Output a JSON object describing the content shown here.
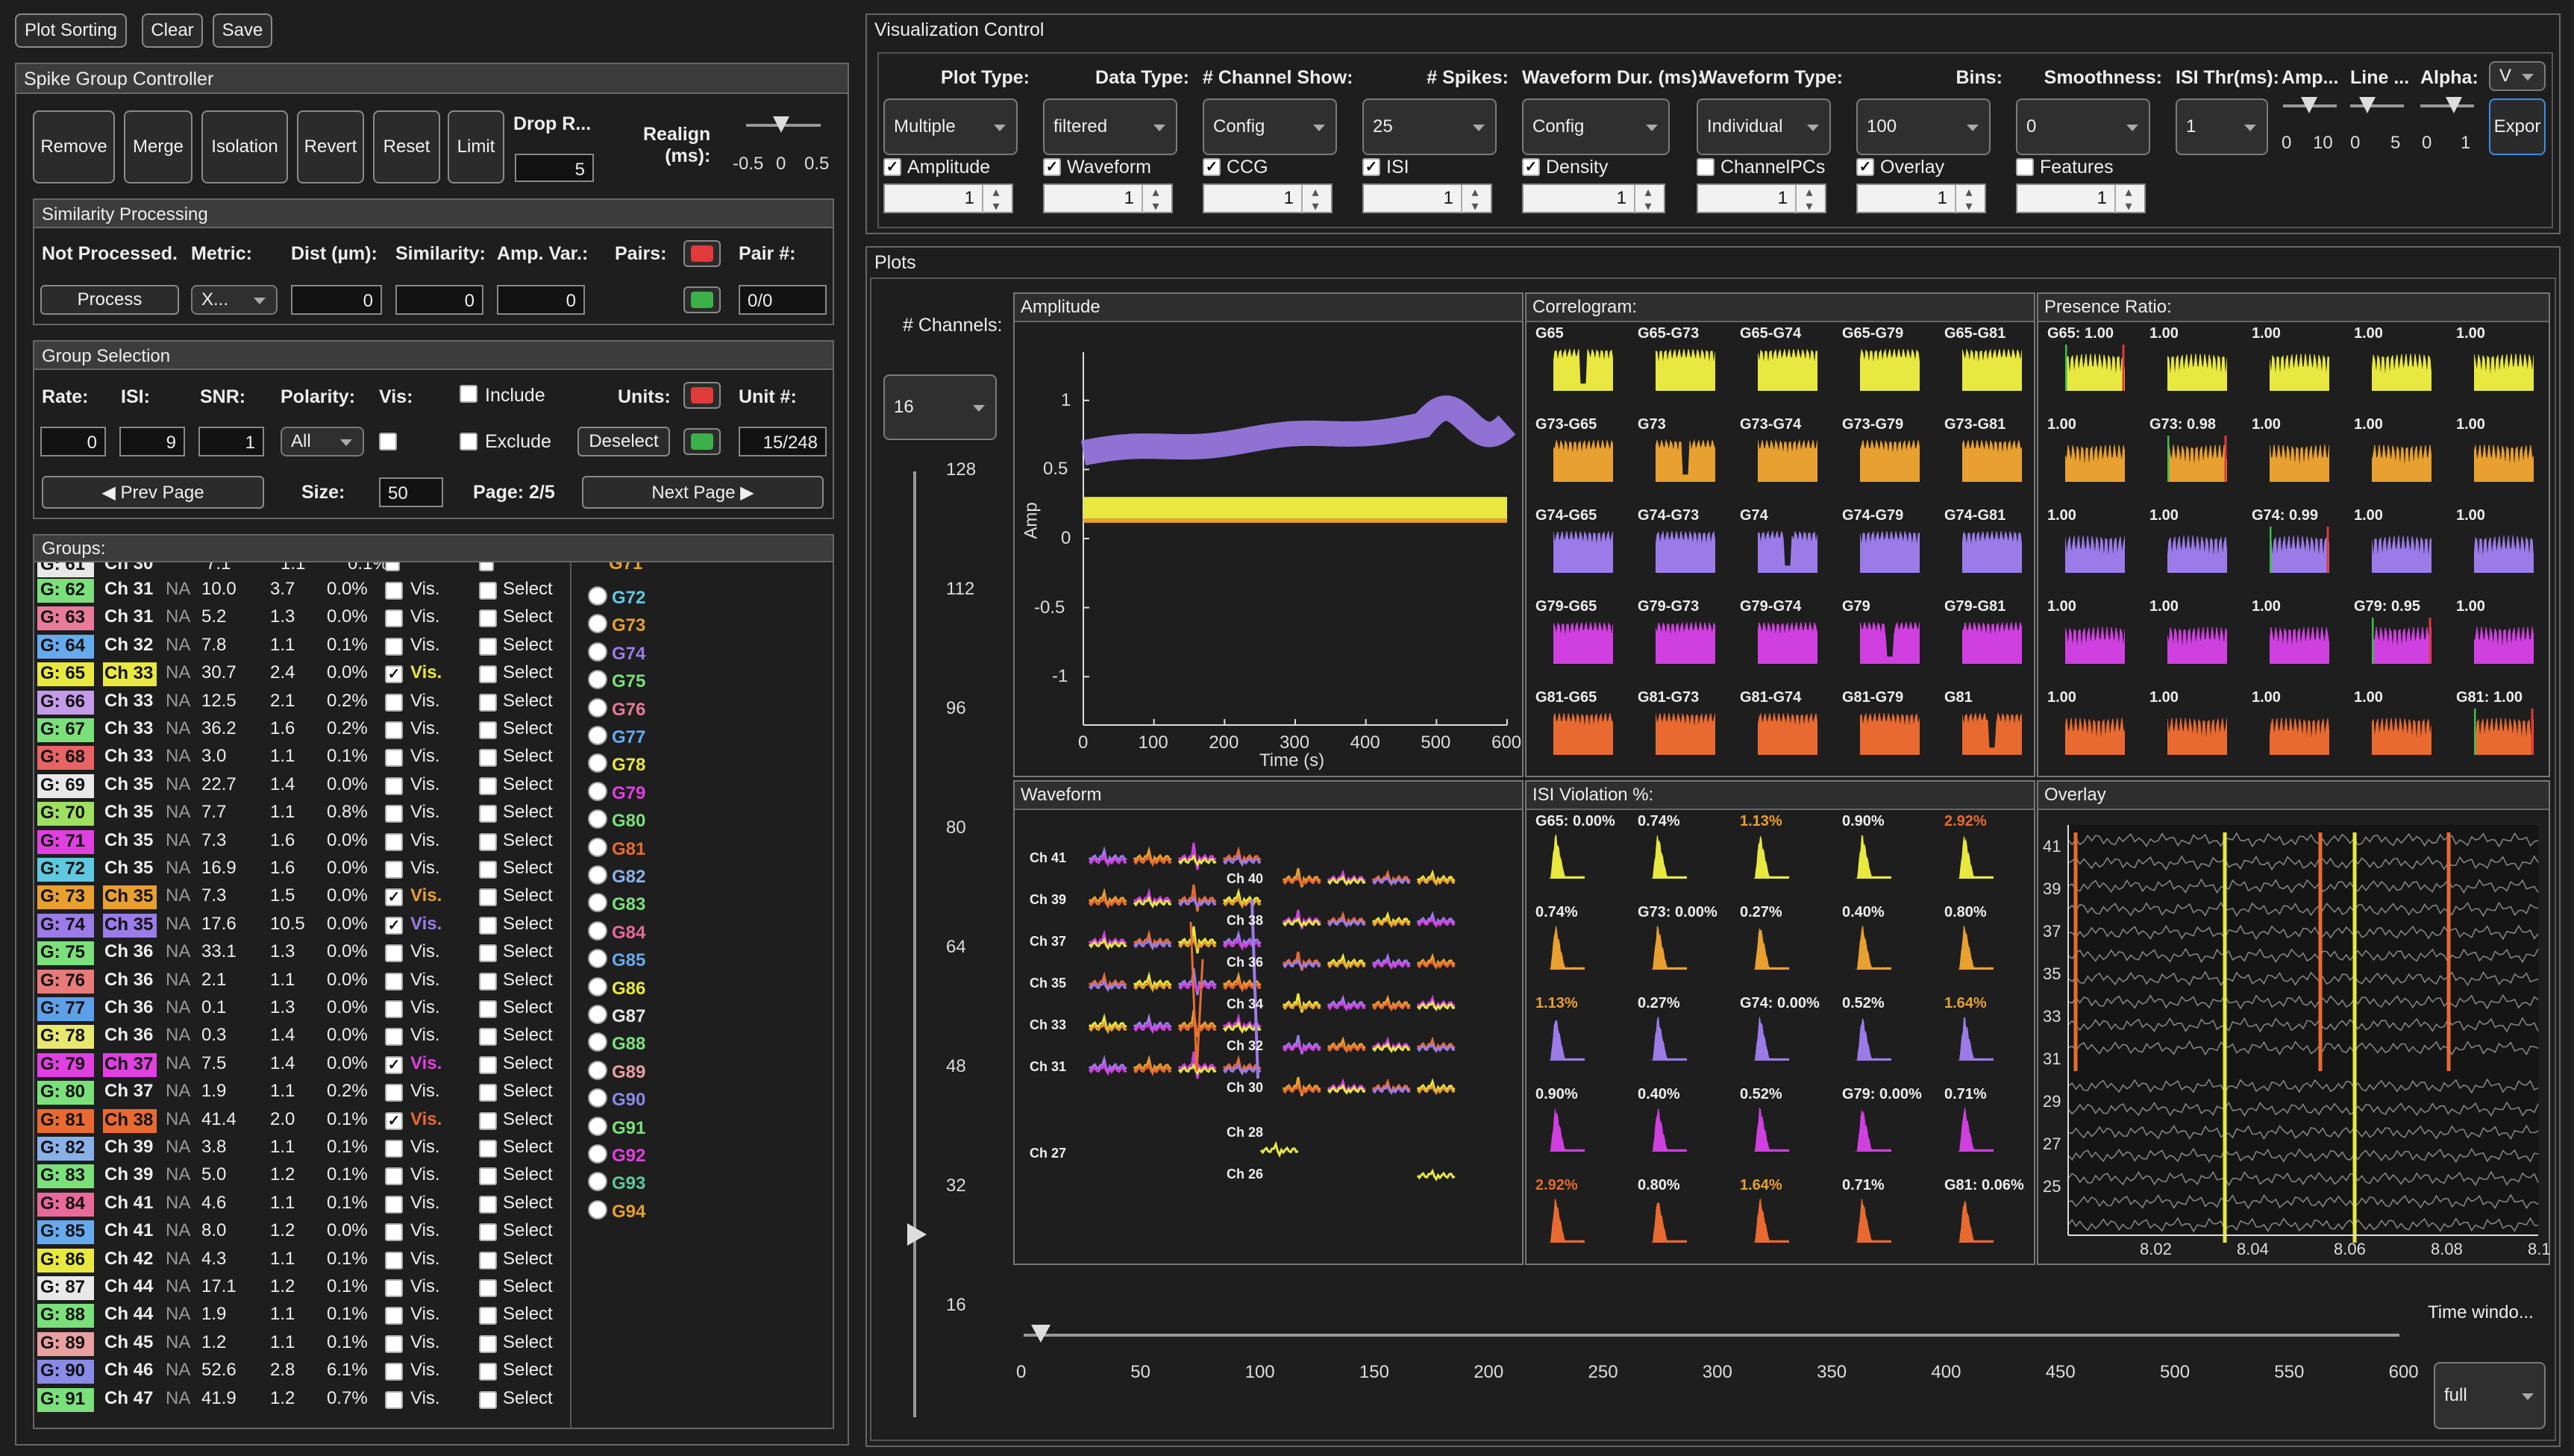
{
  "toolbar": {
    "plot_sorting": "Plot Sorting",
    "clear": "Clear",
    "save": "Save"
  },
  "sgc": {
    "title": "Spike Group Controller",
    "remove": "Remove",
    "merge": "Merge",
    "isolation": "Isolation",
    "revert": "Revert",
    "reset": "Reset",
    "limit": "Limit",
    "drop_label": "Drop R...",
    "drop_value": "5",
    "realign_label": "Realign\n(ms):",
    "realign_ticks": [
      "-0.5",
      "0",
      "0.5"
    ]
  },
  "sim": {
    "title": "Similarity Processing",
    "status": "Not Processed.",
    "metric_label": "Metric:",
    "dist_label": "Dist (µm):",
    "similarity_label": "Similarity:",
    "ampvar_label": "Amp. Var.:",
    "pairs_label": "Pairs:",
    "pairnum_label": "Pair #:",
    "process": "Process",
    "metric_value": "X...",
    "dist_value": "0",
    "similarity_value": "0",
    "ampvar_value": "0",
    "pairnum_value": "0/0"
  },
  "gsel": {
    "title": "Group Selection",
    "rate_label": "Rate:",
    "isi_label": "ISI:",
    "snr_label": "SNR:",
    "polarity_label": "Polarity:",
    "vis_label": "Vis:",
    "include": "Include",
    "exclude": "Exclude",
    "units_label": "Units:",
    "unitnum_label": "Unit #:",
    "rate": "0",
    "isi": "9",
    "snr": "1",
    "polarity": "All",
    "deselect": "Deselect",
    "unitnum": "15/248",
    "prev": "◀ Prev Page",
    "size_label": "Size:",
    "size": "50",
    "page": "Page: 2/5",
    "next": "Next Page ▶"
  },
  "groups": {
    "title": "Groups:",
    "top_partial": {
      "g": "G: 61",
      "ch": "Ch 30",
      "c1": "7.1",
      "c2": "1.1",
      "c3": "0.1%",
      "color": "#e8e8e8",
      "radio": "G71"
    },
    "rows": [
      {
        "g": "G: 62",
        "ch": "Ch 31",
        "na": "NA",
        "rate": "10.0",
        "isi": "3.7",
        "pct": "0.0%",
        "vis": false,
        "color": "#7be07b",
        "radio": "G72",
        "rcolor": "#5ec8e0"
      },
      {
        "g": "G: 63",
        "ch": "Ch 31",
        "na": "NA",
        "rate": "5.2",
        "isi": "1.3",
        "pct": "0.0%",
        "vis": false,
        "color": "#e87a9a",
        "radio": "G73",
        "rcolor": "#e8a030"
      },
      {
        "g": "G: 64",
        "ch": "Ch 32",
        "na": "NA",
        "rate": "7.8",
        "isi": "1.1",
        "pct": "0.1%",
        "vis": false,
        "color": "#66aaee",
        "radio": "G74",
        "rcolor": "#9b7be8"
      },
      {
        "g": "G: 65",
        "ch": "Ch 33",
        "na": "NA",
        "rate": "30.7",
        "isi": "2.4",
        "pct": "0.0%",
        "vis": true,
        "color": "#e8e840",
        "radio": "G75",
        "rcolor": "#7be07b"
      },
      {
        "g": "G: 66",
        "ch": "Ch 33",
        "na": "NA",
        "rate": "12.5",
        "isi": "2.1",
        "pct": "0.2%",
        "vis": false,
        "color": "#c49be8",
        "radio": "G76",
        "rcolor": "#e87a9a"
      },
      {
        "g": "G: 67",
        "ch": "Ch 33",
        "na": "NA",
        "rate": "36.2",
        "isi": "1.6",
        "pct": "0.2%",
        "vis": false,
        "color": "#7be07b",
        "radio": "G77",
        "rcolor": "#66aaee"
      },
      {
        "g": "G: 68",
        "ch": "Ch 33",
        "na": "NA",
        "rate": "3.0",
        "isi": "1.1",
        "pct": "0.1%",
        "vis": false,
        "color": "#e86464",
        "radio": "G78",
        "rcolor": "#e8e840"
      },
      {
        "g": "G: 69",
        "ch": "Ch 35",
        "na": "NA",
        "rate": "22.7",
        "isi": "1.4",
        "pct": "0.0%",
        "vis": false,
        "color": "#e8e8e8",
        "radio": "G79",
        "rcolor": "#e040e0"
      },
      {
        "g": "G: 70",
        "ch": "Ch 35",
        "na": "NA",
        "rate": "7.7",
        "isi": "1.1",
        "pct": "0.8%",
        "vis": false,
        "color": "#a0e060",
        "radio": "G80",
        "rcolor": "#7be07b"
      },
      {
        "g": "G: 71",
        "ch": "Ch 35",
        "na": "NA",
        "rate": "7.3",
        "isi": "1.6",
        "pct": "0.0%",
        "vis": false,
        "color": "#e040e0",
        "radio": "G81",
        "rcolor": "#e86a30"
      },
      {
        "g": "G: 72",
        "ch": "Ch 35",
        "na": "NA",
        "rate": "16.9",
        "isi": "1.6",
        "pct": "0.0%",
        "vis": false,
        "color": "#5ec8e0",
        "radio": "G82",
        "rcolor": "#8ab0e8"
      },
      {
        "g": "G: 73",
        "ch": "Ch 35",
        "na": "NA",
        "rate": "7.3",
        "isi": "1.5",
        "pct": "0.0%",
        "vis": true,
        "color": "#e8a030",
        "radio": "G83",
        "rcolor": "#7be07b"
      },
      {
        "g": "G: 74",
        "ch": "Ch 35",
        "na": "NA",
        "rate": "17.6",
        "isi": "10.5",
        "pct": "0.0%",
        "vis": true,
        "color": "#9b7be8",
        "radio": "G84",
        "rcolor": "#e86a9a"
      },
      {
        "g": "G: 75",
        "ch": "Ch 36",
        "na": "NA",
        "rate": "33.1",
        "isi": "1.3",
        "pct": "0.0%",
        "vis": false,
        "color": "#7be07b",
        "radio": "G85",
        "rcolor": "#66aaee"
      },
      {
        "g": "G: 76",
        "ch": "Ch 36",
        "na": "NA",
        "rate": "2.1",
        "isi": "1.1",
        "pct": "0.0%",
        "vis": false,
        "color": "#e87a7a",
        "radio": "G86",
        "rcolor": "#e8e840"
      },
      {
        "g": "G: 77",
        "ch": "Ch 36",
        "na": "NA",
        "rate": "0.1",
        "isi": "1.3",
        "pct": "0.0%",
        "vis": false,
        "color": "#5ea0e8",
        "radio": "G87",
        "rcolor": "#e8e8e8"
      },
      {
        "g": "G: 78",
        "ch": "Ch 36",
        "na": "NA",
        "rate": "0.3",
        "isi": "1.4",
        "pct": "0.0%",
        "vis": false,
        "color": "#e8e870",
        "radio": "G88",
        "rcolor": "#7be07b"
      },
      {
        "g": "G: 79",
        "ch": "Ch 37",
        "na": "NA",
        "rate": "7.5",
        "isi": "1.4",
        "pct": "0.0%",
        "vis": true,
        "color": "#e040e0",
        "radio": "G89",
        "rcolor": "#e8a0a0"
      },
      {
        "g": "G: 80",
        "ch": "Ch 37",
        "na": "NA",
        "rate": "1.9",
        "isi": "1.1",
        "pct": "0.2%",
        "vis": false,
        "color": "#7be07b",
        "radio": "G90",
        "rcolor": "#8a8ae8"
      },
      {
        "g": "G: 81",
        "ch": "Ch 38",
        "na": "NA",
        "rate": "41.4",
        "isi": "2.0",
        "pct": "0.1%",
        "vis": true,
        "color": "#e86a30",
        "radio": "G91",
        "rcolor": "#7be07b"
      },
      {
        "g": "G: 82",
        "ch": "Ch 39",
        "na": "NA",
        "rate": "3.8",
        "isi": "1.1",
        "pct": "0.1%",
        "vis": false,
        "color": "#8ab0e8",
        "radio": "G92",
        "rcolor": "#e040e0"
      },
      {
        "g": "G: 83",
        "ch": "Ch 39",
        "na": "NA",
        "rate": "5.0",
        "isi": "1.2",
        "pct": "0.1%",
        "vis": false,
        "color": "#7be07b",
        "radio": "G93",
        "rcolor": "#5ec8a0"
      },
      {
        "g": "G: 84",
        "ch": "Ch 41",
        "na": "NA",
        "rate": "4.6",
        "isi": "1.1",
        "pct": "0.1%",
        "vis": false,
        "color": "#e86a9a",
        "radio": "G94",
        "rcolor": "#e8a030"
      },
      {
        "g": "G: 85",
        "ch": "Ch 41",
        "na": "NA",
        "rate": "8.0",
        "isi": "1.2",
        "pct": "0.0%",
        "vis": false,
        "color": "#66aaee"
      },
      {
        "g": "G: 86",
        "ch": "Ch 42",
        "na": "NA",
        "rate": "4.3",
        "isi": "1.1",
        "pct": "0.1%",
        "vis": false,
        "color": "#e8e840"
      },
      {
        "g": "G: 87",
        "ch": "Ch 44",
        "na": "NA",
        "rate": "17.1",
        "isi": "1.2",
        "pct": "0.1%",
        "vis": false,
        "color": "#e8e8e8"
      },
      {
        "g": "G: 88",
        "ch": "Ch 44",
        "na": "NA",
        "rate": "1.9",
        "isi": "1.1",
        "pct": "0.1%",
        "vis": false,
        "color": "#7be07b"
      },
      {
        "g": "G: 89",
        "ch": "Ch 45",
        "na": "NA",
        "rate": "1.2",
        "isi": "1.1",
        "pct": "0.1%",
        "vis": false,
        "color": "#e8a0a0"
      },
      {
        "g": "G: 90",
        "ch": "Ch 46",
        "na": "NA",
        "rate": "52.6",
        "isi": "2.8",
        "pct": "6.1%",
        "vis": false,
        "color": "#8a8ae8"
      },
      {
        "g": "G: 91",
        "ch": "Ch 47",
        "na": "NA",
        "rate": "41.9",
        "isi": "1.2",
        "pct": "0.7%",
        "vis": false,
        "color": "#7be07b"
      }
    ],
    "vis_text": "Vis.",
    "select_text": "Select"
  },
  "vc": {
    "title": "Visualization Control",
    "cols": [
      {
        "label": "Plot Type:",
        "value": "Multiple",
        "check": "Amplitude",
        "checked": true,
        "spin": "1"
      },
      {
        "label": "Data Type:",
        "value": "filtered",
        "check": "Waveform",
        "checked": true,
        "spin": "1"
      },
      {
        "label": "# Channel Show:",
        "value": "Config",
        "check": "CCG",
        "checked": true,
        "spin": "1"
      },
      {
        "label": "# Spikes:",
        "value": "25",
        "check": "ISI",
        "checked": true,
        "spin": "1"
      },
      {
        "label": "Waveform Dur. (ms):",
        "value": "Config",
        "check": "Density",
        "checked": true,
        "spin": "1"
      },
      {
        "label": "Waveform Type:",
        "value": "Individual",
        "check": "ChannelPCs",
        "checked": false,
        "spin": "1"
      },
      {
        "label": "Bins:",
        "value": "100",
        "check": "Overlay",
        "checked": true,
        "spin": "1"
      },
      {
        "label": "Smoothness:",
        "value": "0",
        "check": "Features",
        "checked": false,
        "spin": "1"
      }
    ],
    "isi_thr_label": "ISI Thr(ms):",
    "isi_thr_value": "1",
    "amp_label": "Amp...",
    "line_label": "Line ...",
    "alpha_label": "Alpha:",
    "amp_ticks": [
      "0",
      "10"
    ],
    "line_ticks": [
      "0",
      "5"
    ],
    "alpha_ticks": [
      "0",
      "1"
    ],
    "v_dd": "V",
    "export": "Expor"
  },
  "plots": {
    "title": "Plots",
    "channels_label": "# Channels:",
    "channels_value": "16",
    "vslider_ticks": [
      "128",
      "112",
      "96",
      "80",
      "64",
      "48",
      "32",
      "16"
    ],
    "vslider_level": 8,
    "amplitude": {
      "title": "Amplitude",
      "ylabel": "Amp",
      "xlabel": "Time (s)",
      "yticks": [
        "1",
        "0.5",
        "0",
        "-0.5",
        "-1"
      ],
      "xticks": [
        "0",
        "100",
        "200",
        "300",
        "400",
        "500",
        "600"
      ]
    },
    "correlogram": {
      "title": "Correlogram:",
      "labels": [
        [
          "G65",
          "G65-G73",
          "G65-G74",
          "G65-G79",
          "G65-G81"
        ],
        [
          "G73-G65",
          "G73",
          "G73-G74",
          "G73-G79",
          "G73-G81"
        ],
        [
          "G74-G65",
          "G74-G73",
          "G74",
          "G74-G79",
          "G74-G81"
        ],
        [
          "G79-G65",
          "G79-G73",
          "G79-G74",
          "G79",
          "G79-G81"
        ],
        [
          "G81-G65",
          "G81-G73",
          "G81-G74",
          "G81-G79",
          "G81"
        ]
      ]
    },
    "presence": {
      "title": "Presence Ratio:",
      "labels": [
        [
          "G65: 1.00",
          "1.00",
          "1.00",
          "1.00",
          "1.00"
        ],
        [
          "1.00",
          "G73: 0.98",
          "1.00",
          "1.00",
          "1.00"
        ],
        [
          "1.00",
          "1.00",
          "G74: 0.99",
          "1.00",
          "1.00"
        ],
        [
          "1.00",
          "1.00",
          "1.00",
          "G79: 0.95",
          "1.00"
        ],
        [
          "1.00",
          "1.00",
          "1.00",
          "1.00",
          "G81: 1.00"
        ]
      ]
    },
    "waveform": {
      "title": "Waveform",
      "ch_left": [
        "Ch 41",
        "Ch 39",
        "Ch 37",
        "Ch 35",
        "Ch 33",
        "Ch 31",
        "Ch 27"
      ],
      "ch_mid": [
        "Ch 40",
        "Ch 38",
        "Ch 36",
        "Ch 34",
        "Ch 32",
        "Ch 30",
        "Ch 28",
        "Ch 26"
      ]
    },
    "isi": {
      "title": "ISI Violation %:",
      "labels": [
        [
          "G65: 0.00%",
          "0.74%",
          "1.13%",
          "0.90%",
          "2.92%"
        ],
        [
          "0.74%",
          "G73: 0.00%",
          "0.27%",
          "0.40%",
          "0.80%"
        ],
        [
          "1.13%",
          "0.27%",
          "G74: 0.00%",
          "0.52%",
          "1.64%"
        ],
        [
          "0.90%",
          "0.40%",
          "0.52%",
          "G79: 0.00%",
          "0.71%"
        ],
        [
          "2.92%",
          "0.80%",
          "1.64%",
          "0.71%",
          "G81: 0.06%"
        ]
      ]
    },
    "overlay": {
      "title": "Overlay",
      "yticks": [
        "41",
        "39",
        "37",
        "35",
        "33",
        "31",
        "29",
        "27",
        "25"
      ],
      "xticks": [
        "8.02",
        "8.04",
        "8.06",
        "8.08",
        "8.1"
      ]
    },
    "hslider_ticks": [
      "0",
      "50",
      "100",
      "150",
      "200",
      "250",
      "300",
      "350",
      "400",
      "450",
      "500",
      "550",
      "600"
    ],
    "time_window_label": "Time windo...",
    "time_window_value": "full"
  },
  "colors": {
    "g65": "#e8e840",
    "g73": "#e8a030",
    "g74": "#9b7be8",
    "g79": "#d040e0",
    "g81": "#e86a30"
  }
}
